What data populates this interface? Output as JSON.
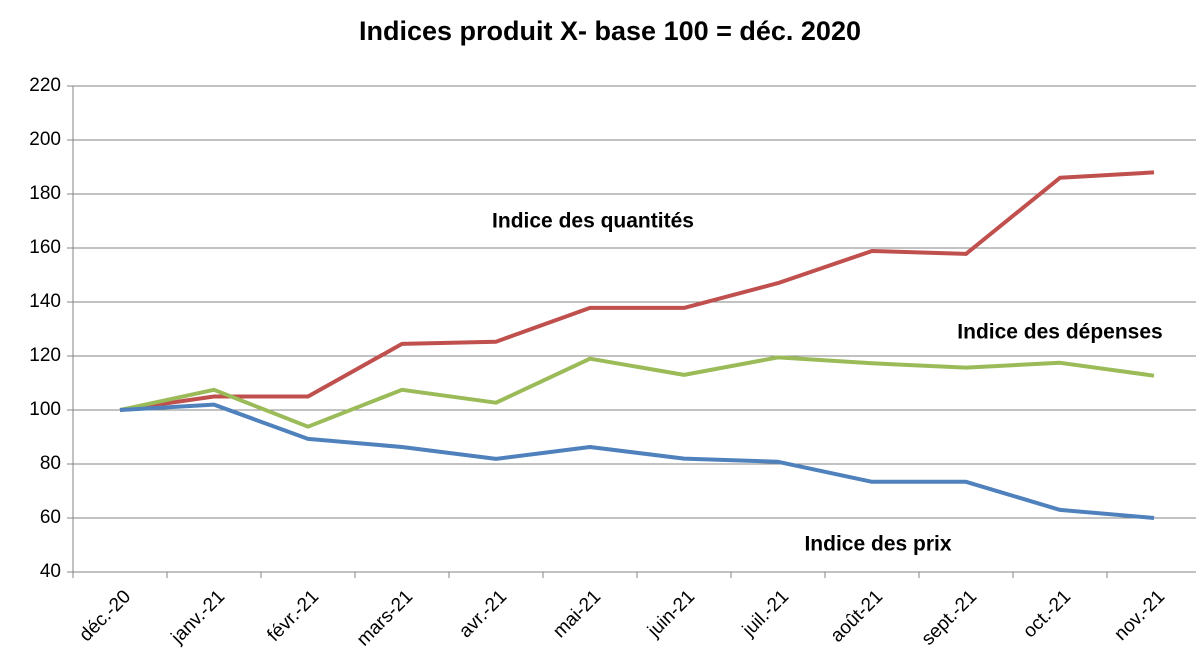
{
  "chart_data": {
    "type": "line",
    "title": "Indices produit X- base 100 = déc. 2020",
    "categories": [
      "déc.-20",
      "janv.-21",
      "févr.-21",
      "mars-21",
      "avr.-21",
      "mai-21",
      "juin-21",
      "juil.-21",
      "août-21",
      "sept.-21",
      "oct.-21",
      "nov.-21"
    ],
    "series": [
      {
        "name": "Indice des quantités",
        "color": "#c0504d",
        "values": [
          100,
          105,
          105,
          124.5,
          125.3,
          137.8,
          137.8,
          147,
          158.9,
          157.8,
          186,
          188
        ]
      },
      {
        "name": "Indice des dépenses",
        "color": "#9bbb59",
        "values": [
          100,
          107.5,
          93.8,
          107.5,
          102.7,
          119,
          113,
          119.5,
          117.3,
          115.7,
          117.5,
          112.7
        ]
      },
      {
        "name": "Indice des prix",
        "color": "#4f81bd",
        "values": [
          100,
          102,
          89.3,
          86.3,
          81.9,
          86.3,
          82,
          80.8,
          73.4,
          73.4,
          63,
          60
        ]
      }
    ],
    "ylim": [
      40,
      220
    ],
    "yticks": [
      40,
      60,
      80,
      100,
      120,
      140,
      160,
      180,
      200,
      220
    ],
    "grid": true
  }
}
